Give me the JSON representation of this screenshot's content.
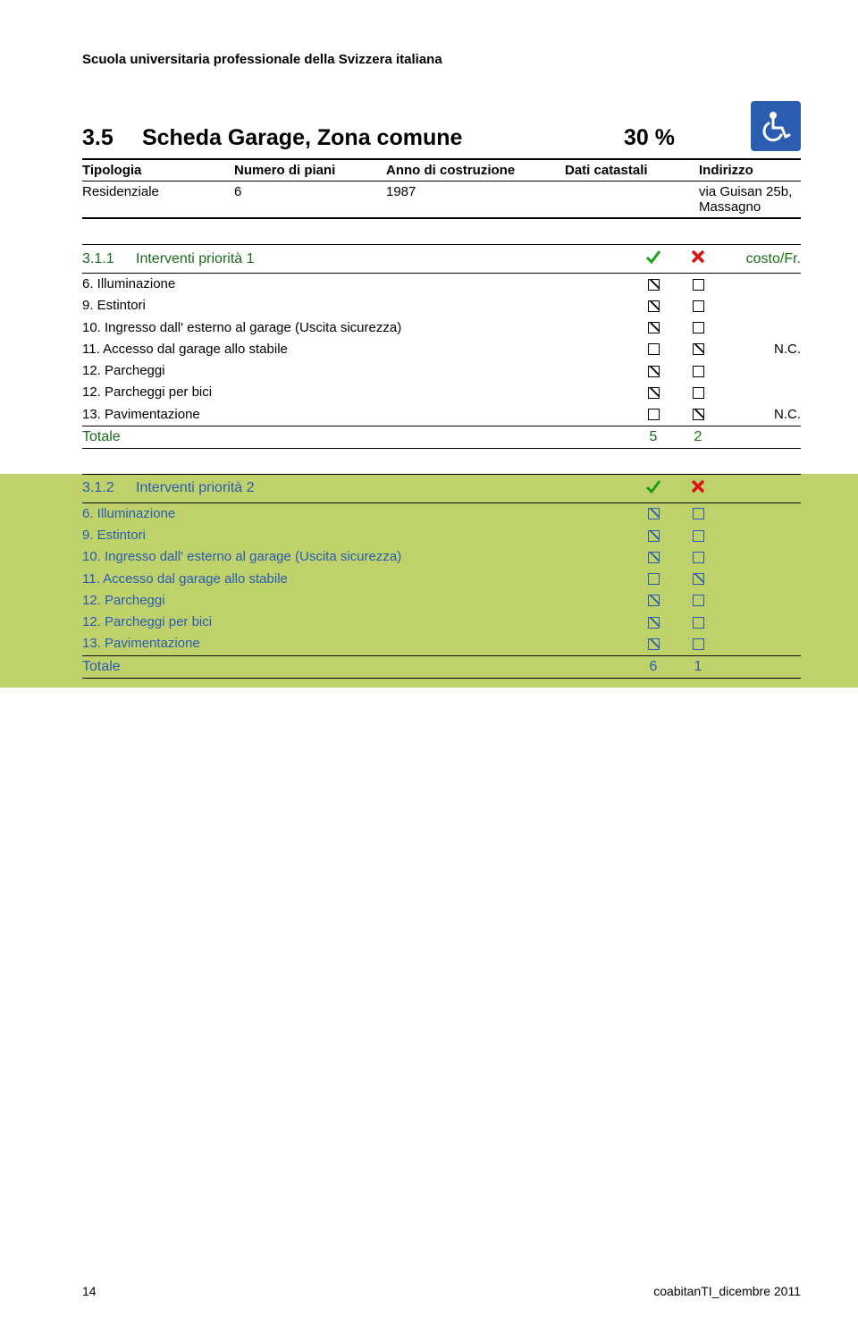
{
  "header": {
    "institution": "Scuola universitaria professionale della Svizzera italiana"
  },
  "title": {
    "number": "3.5",
    "text": "Scheda Garage, Zona comune",
    "percent": "30 %"
  },
  "meta": {
    "headers": {
      "tipologia": "Tipologia",
      "piani": "Numero di piani",
      "anno": "Anno di costruzione",
      "catastali": "Dati catastali",
      "indirizzo": "Indirizzo"
    },
    "values": {
      "tipologia": "Residenziale",
      "piani": "6",
      "anno": "1987",
      "catastali": "",
      "indirizzo": "via Guisan 25b, Massagno"
    }
  },
  "section1": {
    "num": "3.1.1",
    "label": "Interventi priorità 1",
    "cost_label": "costo/Fr.",
    "items": [
      {
        "name": "6. Illuminazione",
        "c1": true,
        "c2": false,
        "note": ""
      },
      {
        "name": "9. Estintori",
        "c1": true,
        "c2": false,
        "note": ""
      },
      {
        "name": "10. Ingresso dall' esterno al garage (Uscita sicurezza)",
        "c1": true,
        "c2": false,
        "note": ""
      },
      {
        "name": "11. Accesso dal garage allo stabile",
        "c1": false,
        "c2": true,
        "note": "N.C."
      },
      {
        "name": "12. Parcheggi",
        "c1": true,
        "c2": false,
        "note": ""
      },
      {
        "name": "12. Parcheggi per bici",
        "c1": true,
        "c2": false,
        "note": ""
      },
      {
        "name": "13. Pavimentazione",
        "c1": false,
        "c2": true,
        "note": "N.C."
      }
    ],
    "total_label": "Totale",
    "total_c1": "5",
    "total_c2": "2"
  },
  "section2": {
    "num": "3.1.2",
    "label": "Interventi priorità 2",
    "items": [
      {
        "name": "6. Illuminazione",
        "c1": true,
        "c2": false
      },
      {
        "name": "9. Estintori",
        "c1": true,
        "c2": false
      },
      {
        "name": "10. Ingresso dall' esterno al garage (Uscita sicurezza)",
        "c1": true,
        "c2": false
      },
      {
        "name": "11. Accesso dal garage allo stabile",
        "c1": false,
        "c2": true
      },
      {
        "name": "12. Parcheggi",
        "c1": true,
        "c2": false
      },
      {
        "name": "12. Parcheggi per bici",
        "c1": true,
        "c2": false
      },
      {
        "name": "13. Pavimentazione",
        "c1": true,
        "c2": false
      }
    ],
    "total_label": "Totale",
    "total_c1": "6",
    "total_c2": "1"
  },
  "footer": {
    "page": "14",
    "doc": "coabitanTI_dicembre 2011"
  },
  "colors": {
    "green_bg": "#BFD16B",
    "text_green": "#1a6b1a",
    "text_blue": "#2a5db0",
    "icon_bg": "#2a5db0"
  }
}
